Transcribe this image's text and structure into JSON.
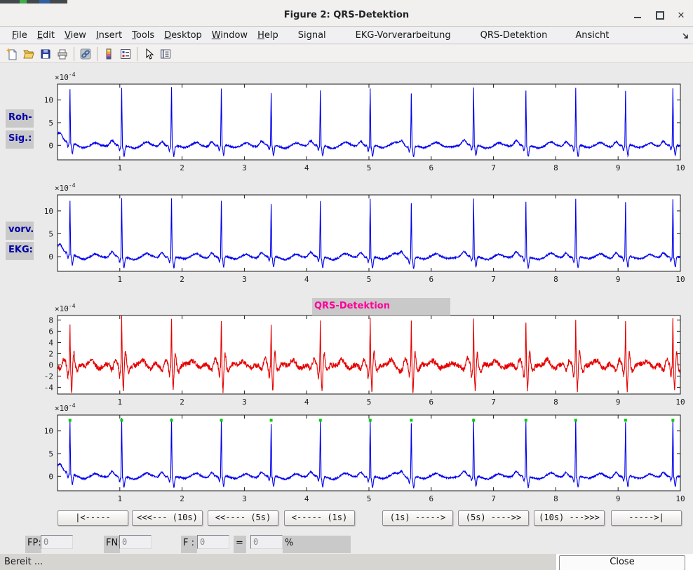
{
  "window": {
    "title": "Figure 2: QRS-Detektion",
    "controls": [
      "minimize",
      "maximize",
      "close"
    ]
  },
  "menu": {
    "items": [
      {
        "label": "File",
        "mnemonic": true
      },
      {
        "label": "Edit",
        "mnemonic": true
      },
      {
        "label": "View",
        "mnemonic": true
      },
      {
        "label": "Insert",
        "mnemonic": true
      },
      {
        "label": "Tools",
        "mnemonic": true
      },
      {
        "label": "Desktop",
        "mnemonic": true
      },
      {
        "label": "Window",
        "mnemonic": true
      },
      {
        "label": "Help",
        "mnemonic": true
      },
      {
        "label": "Signal",
        "mnemonic": false
      },
      {
        "label": "EKG-Vorverarbeitung",
        "mnemonic": false
      },
      {
        "label": "QRS-Detektion",
        "mnemonic": false
      },
      {
        "label": "Ansicht",
        "mnemonic": false
      }
    ]
  },
  "toolbar": {
    "icons": [
      "new-document",
      "open-folder",
      "save",
      "print",
      "link-plot",
      "insert-colorbar",
      "insert-legend",
      "edit-plot-arrow",
      "property-editor"
    ]
  },
  "plot_labels": {
    "raw": [
      "Roh-",
      "Sig.:"
    ],
    "preprocessed": [
      "vorv.",
      "EKG:"
    ]
  },
  "chart_data": [
    {
      "id": "raw",
      "type": "line",
      "title": "",
      "x_range": [
        0,
        10
      ],
      "x_ticks": [
        1,
        2,
        3,
        4,
        5,
        6,
        7,
        8,
        9,
        10
      ],
      "y_ticks": [
        0,
        5,
        10
      ],
      "ylim": [
        -3.2,
        13.5
      ],
      "exponent_base": "×10",
      "exponent_power": "-4",
      "line_color": "#0000EE",
      "beat_times": [
        0.2,
        1.03,
        1.83,
        2.63,
        3.43,
        4.22,
        5.02,
        5.68,
        6.68,
        7.52,
        8.32,
        9.12,
        9.88
      ],
      "r_amplitudes": [
        11.6,
        12.8,
        12.8,
        12.3,
        11.4,
        12.2,
        12.8,
        11.9,
        12.5,
        12.2,
        12.7,
        11.9,
        12.4
      ],
      "waveform": "ecg"
    },
    {
      "id": "preprocessed",
      "type": "line",
      "title": "",
      "x_range": [
        0,
        10
      ],
      "x_ticks": [
        1,
        2,
        3,
        4,
        5,
        6,
        7,
        8,
        9,
        10
      ],
      "y_ticks": [
        0,
        5,
        10
      ],
      "ylim": [
        -3.2,
        13.5
      ],
      "exponent_base": "×10",
      "exponent_power": "-4",
      "line_color": "#0000EE",
      "beat_times": [
        0.2,
        1.03,
        1.83,
        2.63,
        3.43,
        4.22,
        5.02,
        5.68,
        6.68,
        7.52,
        8.32,
        9.12,
        9.88
      ],
      "r_amplitudes": [
        11.6,
        12.8,
        12.8,
        12.3,
        11.4,
        12.2,
        12.8,
        11.9,
        12.5,
        12.2,
        12.7,
        11.9,
        12.4
      ],
      "waveform": "ecg"
    },
    {
      "id": "bandpass",
      "type": "line",
      "title": "QRS-Detektion",
      "title_color": "#FF0099",
      "x_range": [
        0,
        10
      ],
      "x_ticks": [
        1,
        2,
        3,
        4,
        5,
        6,
        7,
        8,
        9,
        10
      ],
      "y_ticks": [
        -4,
        -2,
        0,
        2,
        4,
        6,
        8
      ],
      "ylim": [
        -5.2,
        8.8
      ],
      "exponent_base": "×10",
      "exponent_power": "-4",
      "line_color": "#E60000",
      "beat_times": [
        0.2,
        1.03,
        1.83,
        2.63,
        3.43,
        4.22,
        5.02,
        5.68,
        6.68,
        7.52,
        8.32,
        9.12,
        9.88
      ],
      "r_amplitudes": [
        7.3,
        8.6,
        8.2,
        8.0,
        7.4,
        8.1,
        8.3,
        8.0,
        8.4,
        8.1,
        8.0,
        7.6,
        8.2
      ],
      "waveform": "bandpass"
    },
    {
      "id": "detected",
      "type": "line",
      "title": "",
      "x_range": [
        0,
        10
      ],
      "x_ticks": [
        1,
        2,
        3,
        4,
        5,
        6,
        7,
        8,
        9,
        10
      ],
      "y_ticks": [
        0,
        5,
        10
      ],
      "ylim": [
        -3.2,
        13.5
      ],
      "exponent_base": "×10",
      "exponent_power": "-4",
      "line_color": "#0000EE",
      "beat_times": [
        0.2,
        1.03,
        1.83,
        2.63,
        3.43,
        4.22,
        5.02,
        5.68,
        6.68,
        7.52,
        8.32,
        9.12,
        9.88
      ],
      "r_amplitudes": [
        11.6,
        12.8,
        12.8,
        12.3,
        11.4,
        12.2,
        12.8,
        11.9,
        12.5,
        12.2,
        12.7,
        11.9,
        12.4
      ],
      "markers": {
        "shape": "square",
        "color": "#00CC00",
        "y": 12.35
      },
      "waveform": "ecg"
    }
  ],
  "nav_buttons": [
    "|<-----",
    "<<<--- (10s)",
    "<<---- (5s)",
    "<----- (1s)",
    "(1s) ----->",
    "(5s) ---->>",
    "(10s) --->>>",
    "----->|"
  ],
  "stats": {
    "fp_label": "FP:",
    "fp_value": "0",
    "fn_label": "FN:",
    "fn_value": "0",
    "f_label": "F :",
    "f_value": "0",
    "equals_label": "=",
    "f_percent_value": "0",
    "percent_label": "%"
  },
  "statusbar": {
    "text": "Bereit ...",
    "close_button": "Close"
  }
}
